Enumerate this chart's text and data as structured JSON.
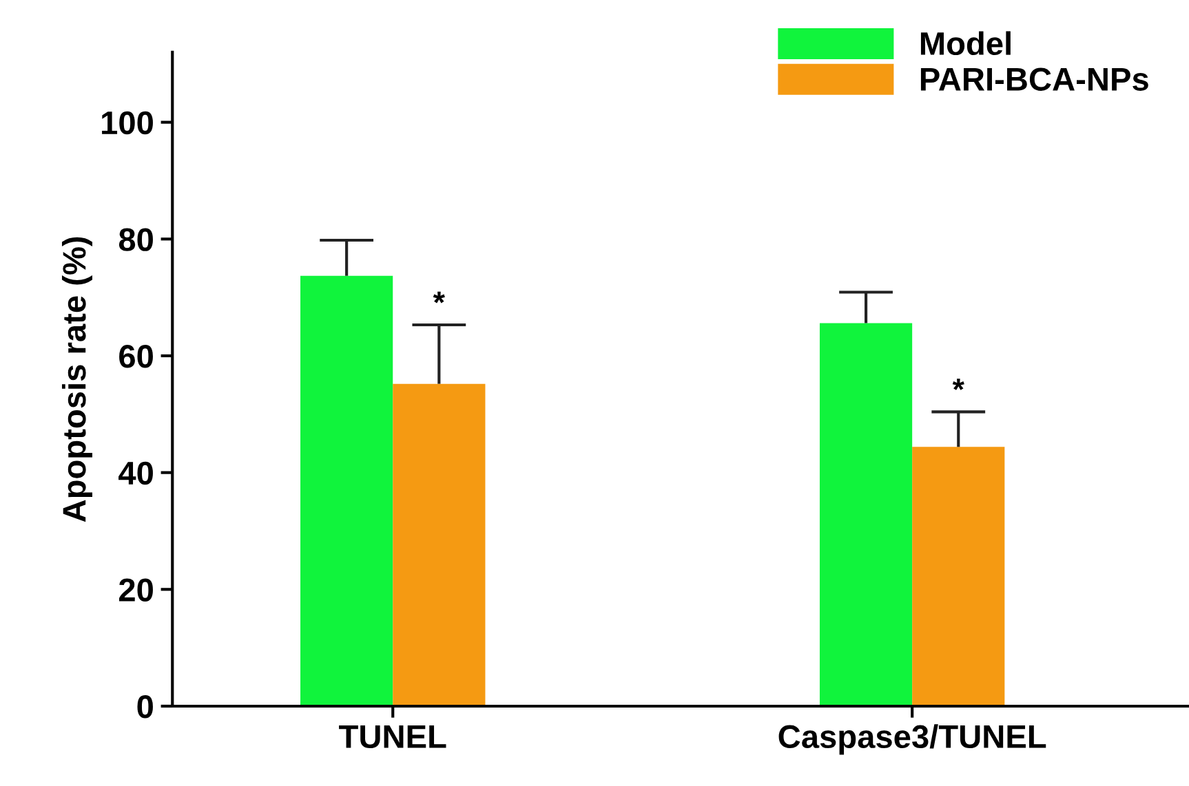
{
  "chart_data": {
    "type": "bar",
    "ylabel": "Apoptosis rate (%)",
    "categories": [
      "TUNEL",
      "Caspase3/TUNEL"
    ],
    "series": [
      {
        "name": "Model",
        "color": "#10f43c",
        "values": [
          73.7,
          65.6
        ],
        "errors": [
          [
            73.7,
            79.8
          ],
          [
            65.6,
            70.9
          ]
        ]
      },
      {
        "name": "PARI-BCA-NPs",
        "color": "#f59a12",
        "values": [
          55.2,
          44.4
        ],
        "errors": [
          [
            55.2,
            65.3
          ],
          [
            44.4,
            50.4
          ]
        ]
      }
    ],
    "ylim": [
      0,
      112
    ],
    "yticks": [
      0,
      20,
      40,
      60,
      80,
      100
    ],
    "grid": false,
    "legend": "top right",
    "annotations": [
      {
        "text": "*",
        "x": "TUNEL",
        "y": 65.3
      },
      {
        "text": "*",
        "x": "Caspase3/TUNEL",
        "y": 50.4
      }
    ]
  }
}
